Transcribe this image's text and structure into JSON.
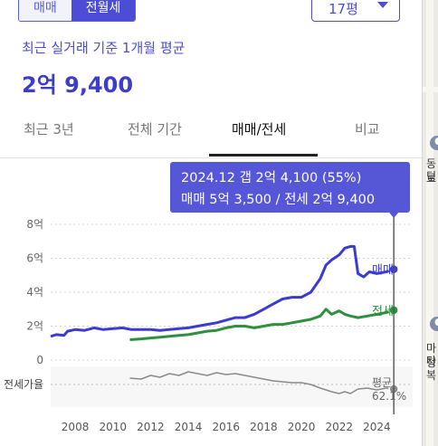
{
  "header": {
    "segment": {
      "left_label": "매매",
      "right_label": "전월세"
    },
    "size_select": {
      "label": "17평"
    }
  },
  "summary": {
    "subtitle": "최근 실거래 기준 1개월 평균",
    "price": "2억 9,400"
  },
  "tabs": [
    {
      "label": "최근 3년",
      "active": false
    },
    {
      "label": "전체 기간",
      "active": false
    },
    {
      "label": "매매/전세",
      "active": true
    },
    {
      "label": "비교",
      "active": false
    }
  ],
  "tooltip": {
    "line1": "2024.12  갭 2억 4,100 (55%)",
    "line2": "매매 5억 3,500 / 전세 2억 9,400"
  },
  "map": {
    "label1": "동딩",
    "label2": "로",
    "label3": "마타",
    "label4": "정복"
  },
  "colors": {
    "sale": "#3b3bd4",
    "jeonse": "#2f8f3e",
    "ratio": "#8a8a8a",
    "accent": "#4b4dd6"
  },
  "chart_data": {
    "type": "line",
    "x_tick_labels": [
      "2008",
      "2010",
      "2012",
      "2014",
      "2016",
      "2018",
      "2020",
      "2022",
      "2024"
    ],
    "y_tick_labels": [
      "0",
      "2억",
      "4억",
      "6억",
      "8억"
    ],
    "ylim": [
      0,
      8
    ],
    "xlim": [
      2006.7,
      2025.9
    ],
    "ratio_row_label": "전세가율",
    "series": [
      {
        "name": "매매",
        "end_label": "매매",
        "unit": "억",
        "points": [
          [
            2006.7,
            1.4
          ],
          [
            2007.0,
            1.5
          ],
          [
            2007.4,
            1.45
          ],
          [
            2007.6,
            1.7
          ],
          [
            2008.0,
            1.8
          ],
          [
            2008.5,
            1.75
          ],
          [
            2009.0,
            1.9
          ],
          [
            2009.5,
            1.8
          ],
          [
            2010.0,
            1.85
          ],
          [
            2010.5,
            1.9
          ],
          [
            2011.0,
            1.8
          ],
          [
            2011.5,
            1.8
          ],
          [
            2012.0,
            1.8
          ],
          [
            2012.5,
            1.75
          ],
          [
            2013.0,
            1.8
          ],
          [
            2013.5,
            1.85
          ],
          [
            2014.0,
            1.9
          ],
          [
            2014.5,
            2.0
          ],
          [
            2015.0,
            2.1
          ],
          [
            2015.5,
            2.2
          ],
          [
            2016.0,
            2.35
          ],
          [
            2016.5,
            2.5
          ],
          [
            2017.0,
            2.5
          ],
          [
            2017.5,
            2.7
          ],
          [
            2018.0,
            3.0
          ],
          [
            2018.5,
            3.3
          ],
          [
            2019.0,
            3.6
          ],
          [
            2019.5,
            3.7
          ],
          [
            2020.0,
            3.7
          ],
          [
            2020.5,
            4.0
          ],
          [
            2021.0,
            4.8
          ],
          [
            2021.3,
            5.6
          ],
          [
            2021.6,
            5.9
          ],
          [
            2022.0,
            6.2
          ],
          [
            2022.3,
            6.6
          ],
          [
            2022.6,
            6.7
          ],
          [
            2022.8,
            6.7
          ],
          [
            2023.0,
            5.1
          ],
          [
            2023.3,
            4.9
          ],
          [
            2023.6,
            5.2
          ],
          [
            2024.0,
            5.1
          ],
          [
            2024.5,
            5.2
          ],
          [
            2024.9,
            5.35
          ]
        ]
      },
      {
        "name": "전세",
        "end_label": "전세",
        "unit": "억",
        "points": [
          [
            2010.9,
            1.2
          ],
          [
            2011.5,
            1.25
          ],
          [
            2012.0,
            1.3
          ],
          [
            2012.5,
            1.35
          ],
          [
            2013.0,
            1.4
          ],
          [
            2013.5,
            1.45
          ],
          [
            2014.0,
            1.5
          ],
          [
            2014.5,
            1.6
          ],
          [
            2015.0,
            1.7
          ],
          [
            2015.5,
            1.75
          ],
          [
            2016.0,
            1.9
          ],
          [
            2016.5,
            2.0
          ],
          [
            2017.0,
            2.0
          ],
          [
            2017.5,
            1.9
          ],
          [
            2018.0,
            2.0
          ],
          [
            2018.5,
            2.1
          ],
          [
            2019.0,
            2.1
          ],
          [
            2019.5,
            2.2
          ],
          [
            2020.0,
            2.3
          ],
          [
            2020.5,
            2.4
          ],
          [
            2021.0,
            2.6
          ],
          [
            2021.3,
            3.0
          ],
          [
            2021.6,
            2.7
          ],
          [
            2022.0,
            2.9
          ],
          [
            2022.3,
            2.7
          ],
          [
            2022.6,
            2.6
          ],
          [
            2023.0,
            2.5
          ],
          [
            2023.5,
            2.6
          ],
          [
            2024.0,
            2.7
          ],
          [
            2024.5,
            2.8
          ],
          [
            2024.9,
            2.94
          ]
        ]
      },
      {
        "name": "전세가율",
        "end_label": "평균",
        "end_value": "62.1%",
        "unit": "%",
        "ylim": [
          40,
          80
        ],
        "points": [
          [
            2010.9,
            67
          ],
          [
            2011.5,
            66
          ],
          [
            2012.0,
            70
          ],
          [
            2012.5,
            68
          ],
          [
            2013.0,
            72
          ],
          [
            2013.5,
            70
          ],
          [
            2014.0,
            74
          ],
          [
            2014.5,
            72
          ],
          [
            2015.0,
            70
          ],
          [
            2015.5,
            73
          ],
          [
            2016.0,
            71
          ],
          [
            2016.5,
            72
          ],
          [
            2017.0,
            70
          ],
          [
            2017.5,
            68
          ],
          [
            2018.0,
            66
          ],
          [
            2018.5,
            64
          ],
          [
            2019.0,
            63
          ],
          [
            2019.5,
            62
          ],
          [
            2020.0,
            62
          ],
          [
            2020.5,
            60
          ],
          [
            2021.0,
            56
          ],
          [
            2021.3,
            54
          ],
          [
            2021.6,
            52
          ],
          [
            2022.0,
            50
          ],
          [
            2022.3,
            52
          ],
          [
            2022.6,
            50
          ],
          [
            2023.0,
            55
          ],
          [
            2023.5,
            56
          ],
          [
            2024.0,
            54
          ],
          [
            2024.5,
            56
          ],
          [
            2024.9,
            55
          ]
        ]
      }
    ],
    "highlight": {
      "x": 2024.9,
      "label": "2024.12"
    },
    "grid": "horizontal-dotted",
    "legend_placement": "line-end labels"
  }
}
